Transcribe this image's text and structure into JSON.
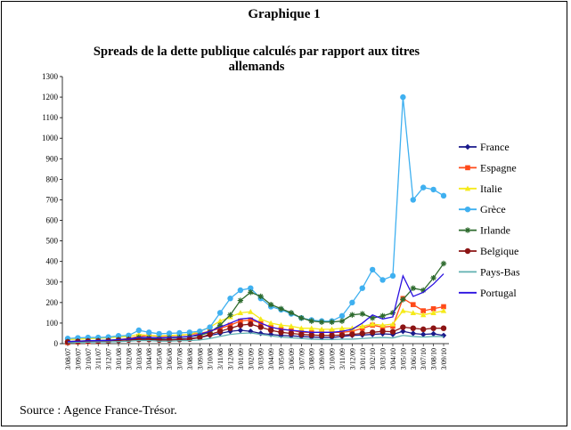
{
  "page": {
    "heading": "Graphique 1",
    "source": "Source : Agence France-Trésor."
  },
  "chart_data": {
    "type": "line",
    "title_line1": "Spreads de la dette publique calculés par rapport aux titres",
    "title_line2": "allemands",
    "xlabel": "",
    "ylabel": "",
    "ylim": [
      0,
      1300
    ],
    "yticks": [
      0,
      100,
      200,
      300,
      400,
      500,
      600,
      700,
      800,
      900,
      1000,
      1100,
      1200,
      1300
    ],
    "grid": false,
    "legend_position": "right",
    "x": [
      "3/08/07",
      "3/09/07",
      "3/10/07",
      "3/11/07",
      "3/12/07",
      "3/01/08",
      "3/02/08",
      "3/03/08",
      "3/04/08",
      "3/05/08",
      "3/06/08",
      "3/07/08",
      "3/08/08",
      "3/09/08",
      "3/10/08",
      "3/11/08",
      "3/12/08",
      "3/01/09",
      "3/02/09",
      "3/03/09",
      "3/04/09",
      "3/05/09",
      "3/06/09",
      "3/07/09",
      "3/08/09",
      "3/09/09",
      "3/10/09",
      "3/11/09",
      "3/12/09",
      "3/01/10",
      "3/02/10",
      "3/03/10",
      "3/04/10",
      "3/05/10",
      "3/06/10",
      "3/07/10",
      "3/08/10",
      "3/09/10"
    ],
    "series": [
      {
        "name": "France",
        "color": "#1a1a8c",
        "marker": "diamond",
        "values": [
          10,
          10,
          12,
          12,
          15,
          18,
          20,
          25,
          25,
          20,
          20,
          22,
          25,
          30,
          40,
          50,
          60,
          65,
          60,
          50,
          45,
          40,
          38,
          35,
          32,
          30,
          30,
          35,
          40,
          42,
          45,
          48,
          45,
          60,
          50,
          45,
          48,
          40
        ]
      },
      {
        "name": "Espagne",
        "color": "#ff4a1a",
        "marker": "square",
        "values": [
          5,
          8,
          10,
          12,
          15,
          20,
          25,
          35,
          40,
          35,
          38,
          40,
          45,
          50,
          60,
          75,
          90,
          110,
          115,
          100,
          80,
          70,
          65,
          55,
          55,
          55,
          55,
          55,
          60,
          75,
          90,
          80,
          85,
          220,
          190,
          160,
          170,
          180
        ]
      },
      {
        "name": "Italie",
        "color": "#f5ea1a",
        "marker": "triangle",
        "values": [
          20,
          22,
          24,
          26,
          28,
          32,
          35,
          45,
          40,
          38,
          40,
          42,
          45,
          60,
          80,
          110,
          130,
          150,
          155,
          120,
          100,
          90,
          85,
          75,
          75,
          70,
          70,
          75,
          75,
          85,
          95,
          90,
          95,
          160,
          150,
          140,
          150,
          160
        ]
      },
      {
        "name": "Grèce",
        "color": "#3fb0f0",
        "marker": "circle",
        "values": [
          25,
          28,
          30,
          30,
          32,
          38,
          40,
          65,
          55,
          48,
          50,
          52,
          55,
          60,
          80,
          150,
          220,
          260,
          270,
          220,
          180,
          165,
          145,
          125,
          115,
          110,
          110,
          135,
          200,
          270,
          360,
          310,
          330,
          1200,
          700,
          760,
          750,
          720
        ]
      },
      {
        "name": "Irlande",
        "color": "#2e6b2e",
        "marker": "star",
        "values": [
          10,
          12,
          14,
          15,
          16,
          20,
          22,
          30,
          28,
          25,
          28,
          30,
          35,
          40,
          55,
          90,
          140,
          210,
          250,
          230,
          190,
          170,
          150,
          125,
          110,
          105,
          105,
          110,
          140,
          145,
          125,
          135,
          150,
          215,
          270,
          260,
          320,
          390
        ]
      },
      {
        "name": "Belgique",
        "color": "#8c1414",
        "marker": "circle",
        "values": [
          8,
          10,
          12,
          12,
          14,
          16,
          18,
          20,
          20,
          18,
          18,
          20,
          22,
          30,
          45,
          60,
          75,
          90,
          95,
          80,
          65,
          55,
          50,
          45,
          42,
          40,
          40,
          42,
          45,
          50,
          55,
          60,
          58,
          80,
          75,
          70,
          75,
          75
        ]
      },
      {
        "name": "Pays-Bas",
        "color": "#5fb0b0",
        "marker": "line",
        "values": [
          5,
          6,
          7,
          8,
          8,
          10,
          12,
          15,
          15,
          12,
          12,
          14,
          15,
          18,
          25,
          35,
          45,
          50,
          52,
          45,
          38,
          32,
          28,
          25,
          22,
          20,
          20,
          22,
          22,
          25,
          28,
          30,
          28,
          40,
          35,
          32,
          35,
          35
        ]
      },
      {
        "name": "Portugal",
        "color": "#2a10e0",
        "marker": "line",
        "values": [
          10,
          12,
          14,
          15,
          16,
          20,
          22,
          30,
          30,
          28,
          30,
          32,
          35,
          45,
          60,
          80,
          100,
          120,
          125,
          100,
          80,
          70,
          65,
          60,
          55,
          55,
          55,
          60,
          70,
          100,
          140,
          120,
          130,
          330,
          230,
          250,
          290,
          340
        ]
      }
    ]
  }
}
